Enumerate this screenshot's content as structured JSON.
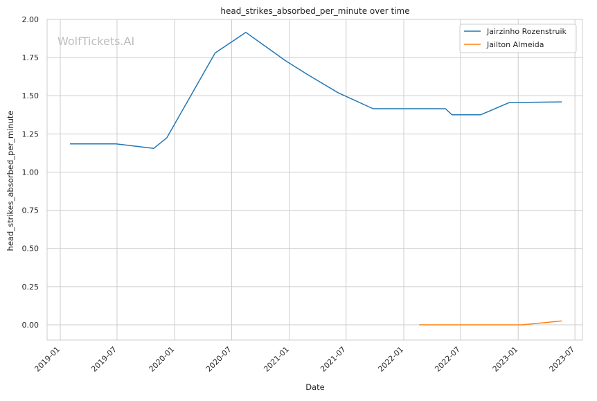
{
  "chart_data": {
    "type": "line",
    "title": "head_strikes_absorbed_per_minute over time",
    "xlabel": "Date",
    "ylabel": "head_strikes_absorbed_per_minute",
    "watermark": "WolfTickets.AI",
    "legend_position": "top-right",
    "grid": true,
    "xlim": [
      "2018-11-20",
      "2023-07-25"
    ],
    "ylim": [
      -0.1,
      2.0
    ],
    "x_ticks": [
      "2019-01",
      "2019-07",
      "2020-01",
      "2020-07",
      "2021-01",
      "2021-07",
      "2022-01",
      "2022-07",
      "2023-01",
      "2023-07"
    ],
    "y_ticks": [
      "0.00",
      "0.25",
      "0.50",
      "0.75",
      "1.00",
      "1.25",
      "1.50",
      "1.75",
      "2.00"
    ],
    "series": [
      {
        "name": "Jairzinho Rozenstruik",
        "color": "#1f77b4",
        "points": [
          {
            "x": "2019-02-01",
            "y": 1.185
          },
          {
            "x": "2019-06-28",
            "y": 1.185
          },
          {
            "x": "2019-10-26",
            "y": 1.155
          },
          {
            "x": "2019-12-07",
            "y": 1.225
          },
          {
            "x": "2020-05-09",
            "y": 1.78
          },
          {
            "x": "2020-08-15",
            "y": 1.915
          },
          {
            "x": "2020-12-19",
            "y": 1.73
          },
          {
            "x": "2021-02-27",
            "y": 1.64
          },
          {
            "x": "2021-06-05",
            "y": 1.52
          },
          {
            "x": "2021-09-25",
            "y": 1.415
          },
          {
            "x": "2022-05-14",
            "y": 1.415
          },
          {
            "x": "2022-06-04",
            "y": 1.375
          },
          {
            "x": "2022-09-03",
            "y": 1.375
          },
          {
            "x": "2022-12-03",
            "y": 1.455
          },
          {
            "x": "2023-05-20",
            "y": 1.46
          }
        ]
      },
      {
        "name": "Jailton Almeida",
        "color": "#ff7f0e",
        "points": [
          {
            "x": "2022-02-19",
            "y": 0.0
          },
          {
            "x": "2022-07-16",
            "y": 0.0
          },
          {
            "x": "2022-11-05",
            "y": 0.0
          },
          {
            "x": "2023-01-14",
            "y": 0.0
          },
          {
            "x": "2023-05-20",
            "y": 0.025
          }
        ]
      }
    ]
  }
}
